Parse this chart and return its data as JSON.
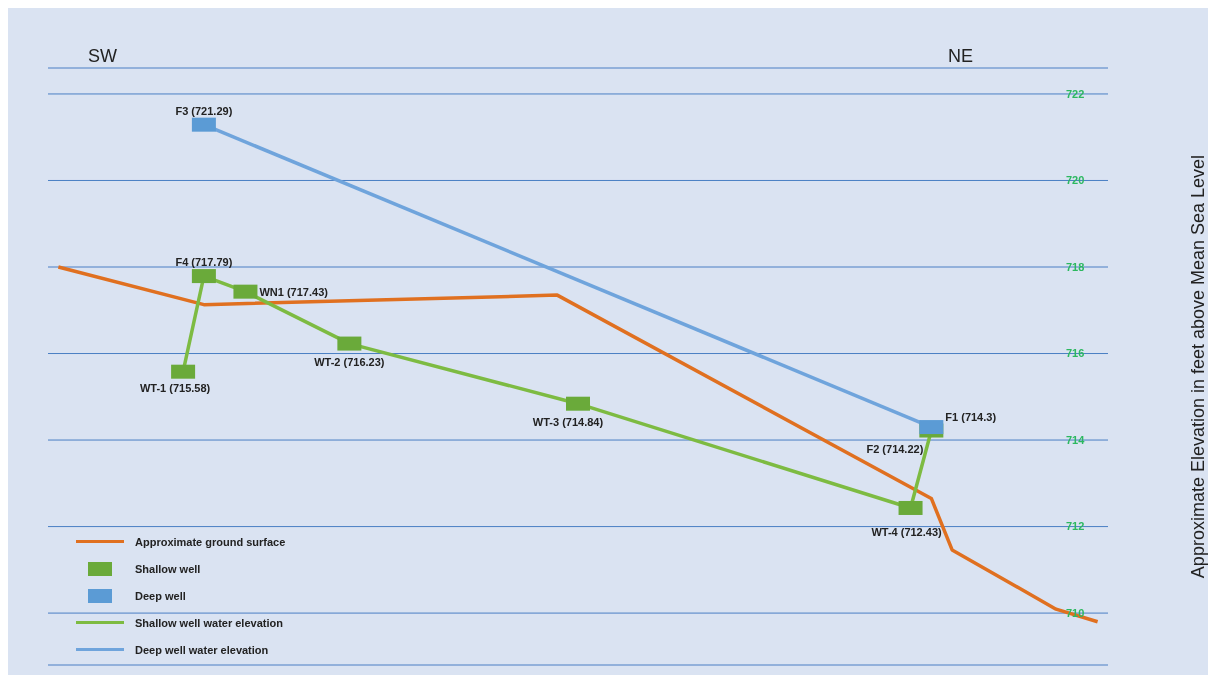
{
  "chart_data": {
    "type": "line",
    "ylabel": "Approximate Elevation in feet above Mean Sea Level",
    "annotations": [
      "SW",
      "NE"
    ],
    "categories": [
      null,
      null,
      null,
      null,
      null,
      null,
      null,
      null,
      null,
      null,
      null,
      null,
      null,
      null,
      null,
      null,
      null,
      null,
      null,
      null,
      null,
      null,
      null,
      null,
      null,
      null,
      null,
      null,
      null,
      null,
      null,
      null,
      null,
      null,
      null,
      null,
      null,
      null,
      null,
      null,
      null,
      null,
      null,
      null,
      null,
      null,
      null,
      null,
      null,
      null,
      null
    ],
    "ylim": [
      708.8,
      722.6
    ],
    "yticks": [
      710,
      712,
      714,
      716,
      718,
      720,
      722
    ],
    "tick_labels": "y",
    "grid": "y",
    "legend": "bottom left",
    "series": [
      {
        "name": "Approximate ground surface",
        "type": "line",
        "marker": "none",
        "color": "#e07020",
        "values": [
          718.0,
          null,
          null,
          null,
          null,
          null,
          null,
          717.13,
          null,
          null,
          null,
          null,
          null,
          null,
          null,
          null,
          null,
          null,
          null,
          null,
          null,
          null,
          null,
          null,
          717.35,
          null,
          null,
          null,
          null,
          null,
          null,
          null,
          null,
          null,
          null,
          null,
          null,
          null,
          null,
          null,
          null,
          null,
          712.65,
          711.46,
          null,
          null,
          null,
          null,
          710.09,
          null,
          709.8
        ]
      },
      {
        "name": "Shallow well",
        "type": "scatter",
        "marker": "square",
        "color": "#6aaa3a",
        "values": [
          null,
          null,
          null,
          null,
          null,
          null,
          715.58,
          717.79,
          null,
          717.43,
          null,
          null,
          null,
          null,
          716.23,
          null,
          null,
          null,
          null,
          null,
          null,
          null,
          null,
          null,
          null,
          714.84,
          null,
          null,
          null,
          null,
          null,
          null,
          null,
          null,
          null,
          null,
          null,
          null,
          null,
          null,
          null,
          712.43,
          714.22,
          null,
          null,
          null,
          null,
          null,
          null,
          null,
          null
        ],
        "value_labels": [
          null,
          null,
          null,
          null,
          null,
          null,
          "WT-1 (715.58)",
          "F4 (717.79)",
          null,
          "WN1 (717.43)",
          null,
          null,
          null,
          null,
          "WT-2 (716.23)",
          null,
          null,
          null,
          null,
          null,
          null,
          null,
          null,
          null,
          null,
          "WT-3 (714.84)",
          null,
          null,
          null,
          null,
          null,
          null,
          null,
          null,
          null,
          null,
          null,
          null,
          null,
          null,
          null,
          "WT-4 (712.43)",
          "F2 (714.22)",
          null,
          null,
          null,
          null,
          null,
          null,
          null,
          null
        ]
      },
      {
        "name": "Deep well",
        "type": "scatter",
        "marker": "square",
        "color": "#5b9bd5",
        "values": [
          null,
          null,
          null,
          null,
          null,
          null,
          null,
          721.29,
          null,
          null,
          null,
          null,
          null,
          null,
          null,
          null,
          null,
          null,
          null,
          null,
          null,
          null,
          null,
          null,
          null,
          null,
          null,
          null,
          null,
          null,
          null,
          null,
          null,
          null,
          null,
          null,
          null,
          null,
          null,
          null,
          null,
          null,
          714.3,
          null,
          null,
          null,
          null,
          null,
          null,
          null,
          null
        ],
        "value_labels": [
          null,
          null,
          null,
          null,
          null,
          null,
          null,
          "F3 (721.29)",
          null,
          null,
          null,
          null,
          null,
          null,
          null,
          null,
          null,
          null,
          null,
          null,
          null,
          null,
          null,
          null,
          null,
          null,
          null,
          null,
          null,
          null,
          null,
          null,
          null,
          null,
          null,
          null,
          null,
          null,
          null,
          null,
          null,
          null,
          "F1 (714.3)",
          null,
          null,
          null,
          null,
          null,
          null,
          null,
          null
        ]
      },
      {
        "name": "Shallow well water elevation",
        "type": "line",
        "marker": "none",
        "color": "#7dbb42",
        "values": [
          null,
          null,
          null,
          null,
          null,
          null,
          715.58,
          717.79,
          null,
          717.43,
          null,
          null,
          null,
          null,
          716.23,
          null,
          null,
          null,
          null,
          null,
          null,
          null,
          null,
          null,
          null,
          714.84,
          null,
          null,
          null,
          null,
          null,
          null,
          null,
          null,
          null,
          null,
          null,
          null,
          null,
          null,
          null,
          712.43,
          714.22,
          null,
          null,
          null,
          null,
          null,
          null,
          null,
          null
        ]
      },
      {
        "name": "Deep well water elevation",
        "type": "line",
        "marker": "none",
        "color": "#6fa4dc",
        "values": [
          null,
          null,
          null,
          null,
          null,
          null,
          null,
          721.29,
          null,
          null,
          null,
          null,
          null,
          null,
          null,
          null,
          null,
          null,
          null,
          null,
          null,
          null,
          null,
          null,
          null,
          null,
          null,
          null,
          null,
          null,
          null,
          null,
          null,
          null,
          null,
          null,
          null,
          null,
          null,
          null,
          null,
          null,
          714.3,
          null,
          null,
          null,
          null,
          null,
          null,
          null,
          null
        ]
      }
    ]
  }
}
